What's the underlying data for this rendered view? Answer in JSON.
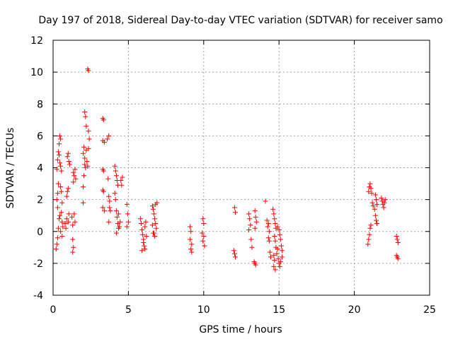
{
  "chart_data": {
    "type": "scatter",
    "title": "Day 197 of 2018, Sidereal Day-to-day VTEC variation (SDTVAR) for receiver samo",
    "xlabel": "GPS time / hours",
    "ylabel": "SDTVAR / TECUs",
    "xlim": [
      0,
      25
    ],
    "ylim": [
      -4,
      12
    ],
    "xticks": [
      0,
      5,
      10,
      15,
      20,
      25
    ],
    "yticks": [
      -4,
      -2,
      0,
      2,
      4,
      6,
      8,
      10,
      12
    ],
    "grid": true,
    "marker": "+",
    "marker_color": "#ff0000",
    "series": [
      {
        "name": "SDTVAR",
        "points": [
          [
            0.2,
            -1.1
          ],
          [
            0.25,
            -0.8
          ],
          [
            0.3,
            -0.4
          ],
          [
            0.35,
            0.2
          ],
          [
            0.4,
            0.8
          ],
          [
            0.3,
            1.5
          ],
          [
            0.25,
            2.0
          ],
          [
            0.3,
            2.4
          ],
          [
            0.35,
            3.0
          ],
          [
            0.25,
            3.9
          ],
          [
            0.3,
            4.5
          ],
          [
            0.35,
            5.0
          ],
          [
            0.4,
            5.5
          ],
          [
            0.45,
            6.0
          ],
          [
            0.5,
            5.8
          ],
          [
            0.4,
            4.8
          ],
          [
            0.45,
            4.3
          ],
          [
            0.5,
            4.1
          ],
          [
            0.55,
            3.8
          ],
          [
            0.5,
            2.8
          ],
          [
            0.55,
            2.5
          ],
          [
            0.6,
            1.8
          ],
          [
            0.55,
            1.2
          ],
          [
            0.6,
            0.6
          ],
          [
            0.65,
            0.3
          ],
          [
            0.6,
            -0.3
          ],
          [
            0.5,
            0.0
          ],
          [
            0.45,
            1.0
          ],
          [
            0.8,
            0.5
          ],
          [
            0.85,
            0.2
          ],
          [
            0.9,
            0.8
          ],
          [
            0.9,
            2.2
          ],
          [
            0.95,
            2.5
          ],
          [
            1.0,
            2.7
          ],
          [
            0.95,
            4.7
          ],
          [
            1.0,
            4.9
          ],
          [
            1.05,
            4.4
          ],
          [
            1.1,
            4.2
          ],
          [
            1.0,
            0.6
          ],
          [
            1.05,
            1.1
          ],
          [
            1.25,
            0.9
          ],
          [
            1.3,
            0.4
          ],
          [
            1.3,
            -0.5
          ],
          [
            1.35,
            -1.0
          ],
          [
            1.3,
            -1.3
          ],
          [
            1.35,
            3.1
          ],
          [
            1.4,
            3.5
          ],
          [
            1.45,
            3.9
          ],
          [
            1.5,
            3.3
          ],
          [
            1.35,
            3.7
          ],
          [
            1.4,
            1.1
          ],
          [
            1.45,
            0.6
          ],
          [
            2.0,
            1.8
          ],
          [
            2.0,
            2.8
          ],
          [
            2.05,
            3.5
          ],
          [
            2.1,
            4.2
          ],
          [
            2.0,
            4.9
          ],
          [
            2.05,
            5.3
          ],
          [
            2.1,
            4.6
          ],
          [
            2.15,
            4.0
          ],
          [
            2.1,
            7.5
          ],
          [
            2.15,
            7.2
          ],
          [
            2.2,
            6.6
          ],
          [
            2.2,
            5.1
          ],
          [
            2.25,
            4.4
          ],
          [
            2.3,
            4.1
          ],
          [
            2.35,
            5.2
          ],
          [
            2.35,
            6.3
          ],
          [
            2.4,
            5.8
          ],
          [
            2.3,
            10.2
          ],
          [
            2.35,
            10.1
          ],
          [
            3.3,
            7.1
          ],
          [
            3.35,
            7.0
          ],
          [
            3.3,
            5.7
          ],
          [
            3.4,
            5.6
          ],
          [
            3.3,
            3.9
          ],
          [
            3.35,
            3.8
          ],
          [
            3.3,
            2.6
          ],
          [
            3.35,
            2.5
          ],
          [
            3.3,
            1.5
          ],
          [
            3.4,
            1.3
          ],
          [
            3.6,
            5.8
          ],
          [
            3.7,
            6.0
          ],
          [
            3.65,
            3.3
          ],
          [
            3.7,
            2.2
          ],
          [
            3.75,
            1.5
          ],
          [
            3.8,
            1.3
          ],
          [
            3.7,
            0.6
          ],
          [
            3.75,
            1.9
          ],
          [
            4.1,
            4.1
          ],
          [
            4.15,
            3.8
          ],
          [
            4.2,
            3.5
          ],
          [
            4.25,
            3.2
          ],
          [
            4.3,
            2.9
          ],
          [
            4.1,
            2.4
          ],
          [
            4.15,
            2.0
          ],
          [
            4.2,
            1.3
          ],
          [
            4.25,
            0.9
          ],
          [
            4.3,
            0.5
          ],
          [
            4.35,
            0.2
          ],
          [
            4.4,
            0.3
          ],
          [
            4.45,
            0.6
          ],
          [
            4.5,
            3.2
          ],
          [
            4.55,
            2.9
          ],
          [
            4.6,
            3.4
          ],
          [
            4.35,
            1.1
          ],
          [
            4.2,
            -0.1
          ],
          [
            4.9,
            1.7
          ],
          [
            4.95,
            1.1
          ],
          [
            5.0,
            0.6
          ],
          [
            4.9,
            0.3
          ],
          [
            5.8,
            0.8
          ],
          [
            5.85,
            0.5
          ],
          [
            5.9,
            0.1
          ],
          [
            5.95,
            -0.2
          ],
          [
            6.0,
            -0.5
          ],
          [
            6.05,
            -0.9
          ],
          [
            6.1,
            -1.1
          ],
          [
            5.9,
            -1.2
          ],
          [
            6.0,
            -0.7
          ],
          [
            6.1,
            0.3
          ],
          [
            6.15,
            0.6
          ],
          [
            6.2,
            -0.3
          ],
          [
            6.6,
            1.6
          ],
          [
            6.65,
            1.4
          ],
          [
            6.7,
            1.1
          ],
          [
            6.75,
            0.8
          ],
          [
            6.8,
            0.5
          ],
          [
            6.85,
            0.2
          ],
          [
            6.7,
            -0.1
          ],
          [
            6.75,
            -0.3
          ],
          [
            6.6,
            0.4
          ],
          [
            6.8,
            1.7
          ],
          [
            6.9,
            1.8
          ],
          [
            6.65,
            -0.1
          ],
          [
            9.1,
            0.3
          ],
          [
            9.15,
            0.0
          ],
          [
            9.1,
            -0.5
          ],
          [
            9.2,
            -0.8
          ],
          [
            9.15,
            -1.1
          ],
          [
            9.2,
            -1.3
          ],
          [
            9.95,
            0.8
          ],
          [
            10.0,
            0.5
          ],
          [
            9.9,
            -0.1
          ],
          [
            10.0,
            -0.3
          ],
          [
            9.95,
            -0.6
          ],
          [
            10.05,
            -0.9
          ],
          [
            12.05,
            1.5
          ],
          [
            12.1,
            1.2
          ],
          [
            12.0,
            -1.2
          ],
          [
            12.05,
            -1.4
          ],
          [
            12.1,
            -1.6
          ],
          [
            13.0,
            1.1
          ],
          [
            13.05,
            0.8
          ],
          [
            13.1,
            0.4
          ],
          [
            13.0,
            0.1
          ],
          [
            13.15,
            -0.5
          ],
          [
            13.2,
            -1.0
          ],
          [
            13.4,
            1.3
          ],
          [
            13.45,
            0.9
          ],
          [
            13.5,
            0.6
          ],
          [
            13.4,
            0.2
          ],
          [
            13.35,
            -1.9
          ],
          [
            13.4,
            -2.0
          ],
          [
            13.45,
            -2.1
          ],
          [
            14.1,
            1.9
          ],
          [
            14.2,
            0.7
          ],
          [
            14.3,
            0.5
          ],
          [
            14.25,
            0.3
          ],
          [
            14.35,
            0.0
          ],
          [
            14.3,
            -0.4
          ],
          [
            14.4,
            -1.3
          ],
          [
            14.45,
            -1.6
          ],
          [
            14.35,
            -0.6
          ],
          [
            14.6,
            1.4
          ],
          [
            14.65,
            1.1
          ],
          [
            14.7,
            0.8
          ],
          [
            14.75,
            0.5
          ],
          [
            14.8,
            0.2
          ],
          [
            14.7,
            -0.3
          ],
          [
            14.75,
            -0.6
          ],
          [
            14.8,
            -1.0
          ],
          [
            14.65,
            -1.5
          ],
          [
            14.7,
            -1.8
          ],
          [
            14.65,
            -2.2
          ],
          [
            14.75,
            -2.4
          ],
          [
            14.85,
            -1.4
          ],
          [
            14.9,
            -1.1
          ],
          [
            14.95,
            -1.7
          ],
          [
            15.0,
            -2.0
          ],
          [
            15.05,
            -2.2
          ],
          [
            15.1,
            -1.9
          ],
          [
            14.9,
            0.3
          ],
          [
            15.0,
            0.1
          ],
          [
            15.05,
            -0.2
          ],
          [
            15.1,
            -0.5
          ],
          [
            15.15,
            -0.9
          ],
          [
            15.2,
            -1.2
          ],
          [
            15.2,
            -1.6
          ],
          [
            20.9,
            -0.8
          ],
          [
            20.95,
            -0.5
          ],
          [
            21.0,
            -0.2
          ],
          [
            21.05,
            0.2
          ],
          [
            21.1,
            0.4
          ],
          [
            20.95,
            2.5
          ],
          [
            21.0,
            2.8
          ],
          [
            21.05,
            3.0
          ],
          [
            21.1,
            2.7
          ],
          [
            21.15,
            2.4
          ],
          [
            21.2,
            1.8
          ],
          [
            21.25,
            1.6
          ],
          [
            21.35,
            1.4
          ],
          [
            21.4,
            1.0
          ],
          [
            21.45,
            0.7
          ],
          [
            21.5,
            0.5
          ],
          [
            21.4,
            2.3
          ],
          [
            21.45,
            2.0
          ],
          [
            21.5,
            1.7
          ],
          [
            21.8,
            2.1
          ],
          [
            21.85,
            1.9
          ],
          [
            21.9,
            1.7
          ],
          [
            21.95,
            1.5
          ],
          [
            22.0,
            1.8
          ],
          [
            22.05,
            2.0
          ],
          [
            22.8,
            -0.3
          ],
          [
            22.85,
            -0.5
          ],
          [
            22.9,
            -0.7
          ],
          [
            22.8,
            -1.5
          ],
          [
            22.85,
            -1.6
          ],
          [
            22.9,
            -1.7
          ]
        ]
      }
    ]
  }
}
